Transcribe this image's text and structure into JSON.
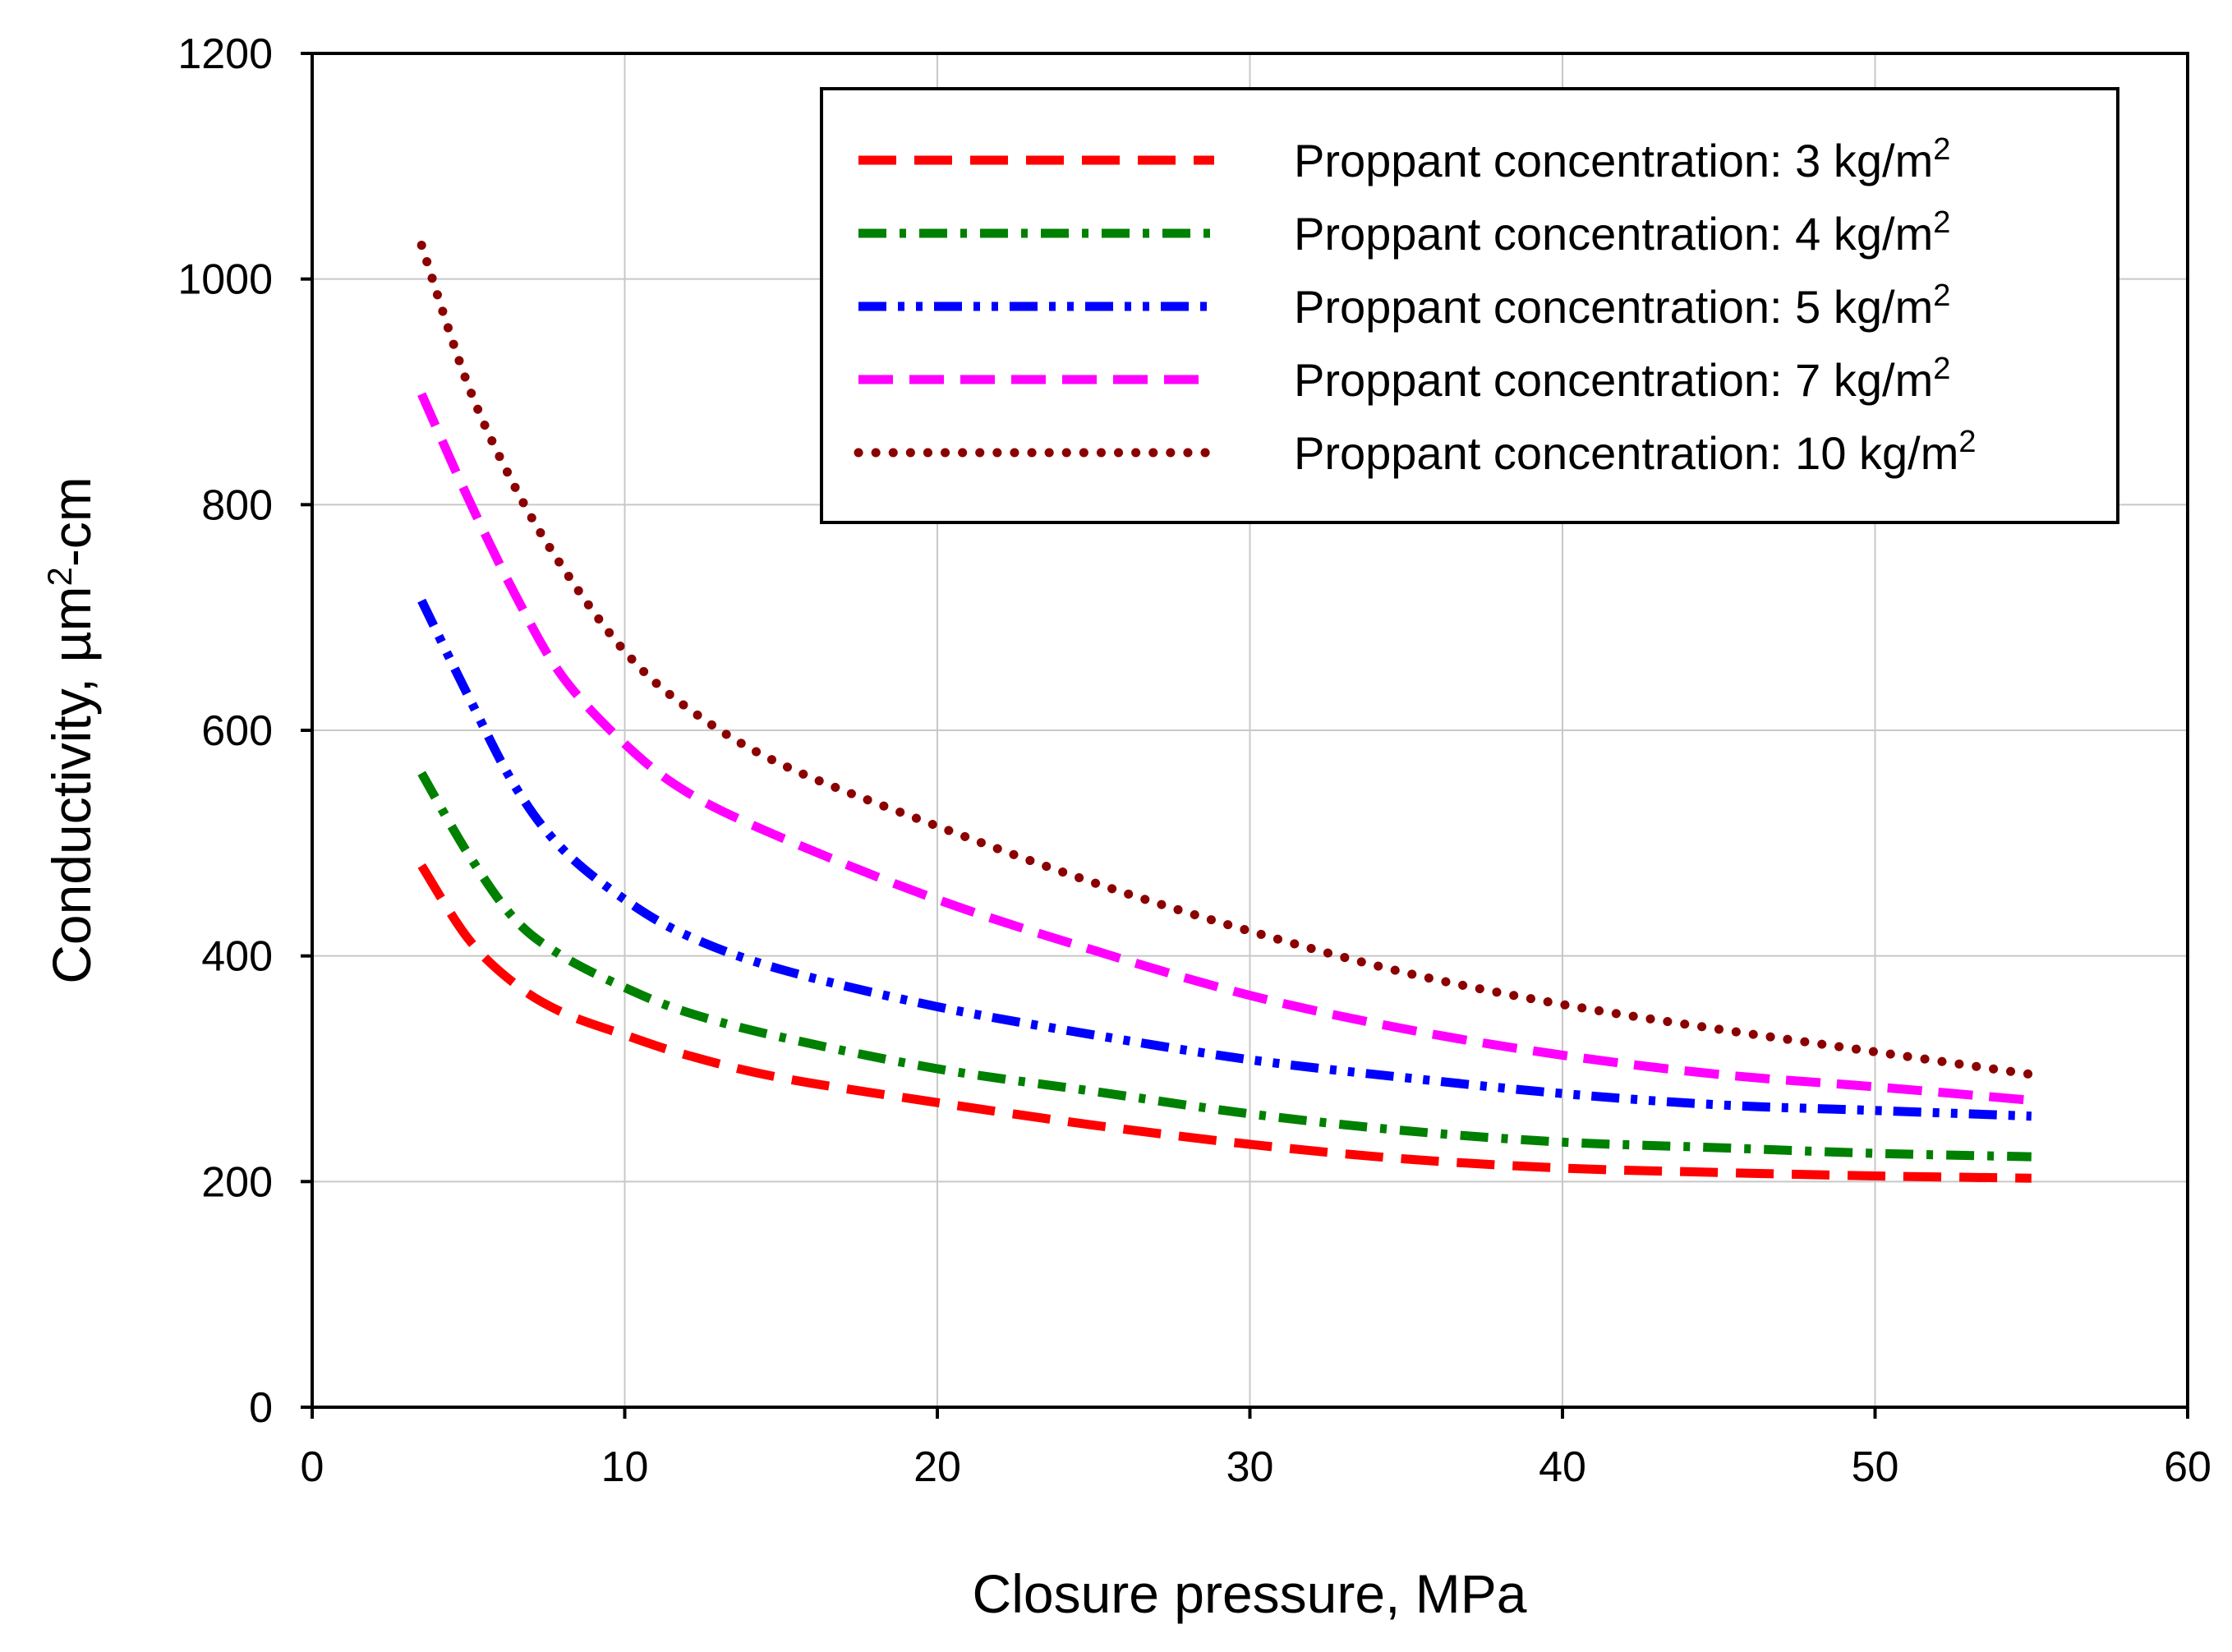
{
  "chart_data": {
    "type": "line",
    "title": "",
    "xlabel": "Closure pressure, MPa",
    "ylabel": {
      "text": "Conductivity, µm",
      "sup": "2",
      "tail": "-cm"
    },
    "xlim": [
      0,
      60
    ],
    "ylim": [
      0,
      1200
    ],
    "xticks": [
      0,
      10,
      20,
      30,
      40,
      50,
      60
    ],
    "yticks": [
      0,
      200,
      400,
      600,
      800,
      1000,
      1200
    ],
    "grid": true,
    "legend_position": "top-right",
    "series": [
      {
        "name": "Proppant concentration: 3 kg/m2",
        "label": "Proppant concentration: 3 kg/m",
        "unit_sup": "2",
        "color": "#ff0000",
        "style": "dash",
        "x": [
          3.5,
          5,
          6.5,
          8,
          10,
          12,
          15,
          20,
          25,
          30,
          35,
          40,
          45,
          50,
          55
        ],
        "y": [
          480,
          415,
          375,
          350,
          330,
          312,
          292,
          270,
          250,
          233,
          220,
          212,
          208,
          205,
          203
        ]
      },
      {
        "name": "Proppant concentration: 4 kg/m2",
        "label": "Proppant concentration: 4 kg/m",
        "unit_sup": "2",
        "color": "#008000",
        "style": "dashdot",
        "x": [
          3.5,
          5,
          6.5,
          8,
          10,
          12,
          15,
          20,
          25,
          30,
          35,
          40,
          45,
          50,
          55
        ],
        "y": [
          562,
          490,
          432,
          400,
          372,
          350,
          328,
          300,
          280,
          260,
          245,
          235,
          230,
          225,
          222
        ]
      },
      {
        "name": "Proppant concentration: 5 kg/m2",
        "label": "Proppant concentration: 5 kg/m",
        "unit_sup": "2",
        "color": "#0000ff",
        "style": "dashdotdot",
        "x": [
          3.5,
          5,
          6.5,
          8,
          10,
          12,
          15,
          20,
          25,
          30,
          35,
          40,
          45,
          50,
          55
        ],
        "y": [
          715,
          630,
          550,
          495,
          450,
          418,
          388,
          355,
          330,
          308,
          292,
          278,
          268,
          263,
          258
        ]
      },
      {
        "name": "Proppant concentration: 7 kg/m2",
        "label": "Proppant concentration: 7 kg/m",
        "unit_sup": "2",
        "color": "#ff00ff",
        "style": "longdash",
        "x": [
          3.5,
          5,
          6.5,
          8,
          10,
          12,
          15,
          20,
          25,
          30,
          35,
          40,
          45,
          50,
          55
        ],
        "y": [
          898,
          805,
          720,
          648,
          588,
          545,
          505,
          450,
          405,
          365,
          335,
          312,
          295,
          284,
          272
        ]
      },
      {
        "name": "Proppant concentration: 10 kg/m2",
        "label": "Proppant concentration: 10 kg/m",
        "unit_sup": "2",
        "color": "#8b0000",
        "style": "dot",
        "x": [
          3.5,
          5,
          6.5,
          8,
          10,
          12,
          15,
          20,
          25,
          30,
          35,
          40,
          45,
          50,
          55
        ],
        "y": [
          1030,
          905,
          815,
          745,
          670,
          620,
          570,
          515,
          465,
          422,
          385,
          357,
          335,
          315,
          295
        ]
      }
    ]
  }
}
